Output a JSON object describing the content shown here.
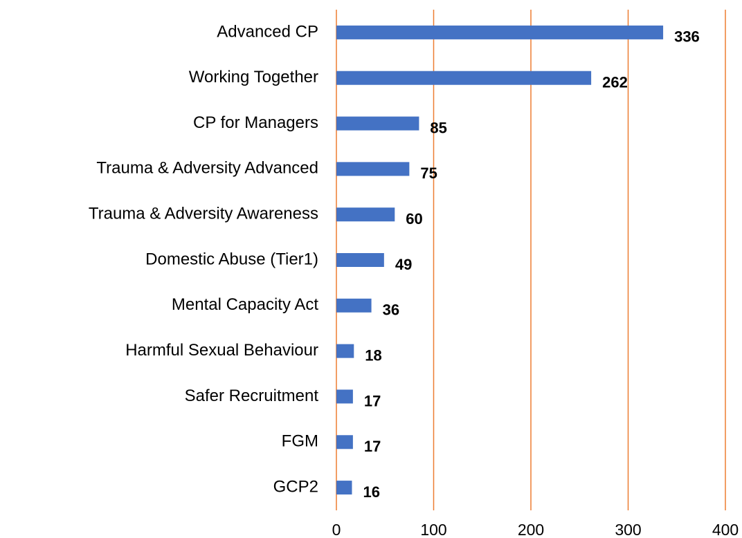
{
  "chart_data": {
    "type": "bar",
    "orientation": "horizontal",
    "categories": [
      "Advanced CP",
      "Working Together",
      "CP for Managers",
      "Trauma & Adversity Advanced",
      "Trauma & Adversity Awareness",
      "Domestic Abuse (Tier1)",
      "Mental Capacity Act",
      "Harmful Sexual Behaviour",
      "Safer Recruitment",
      "FGM",
      "GCP2"
    ],
    "values": [
      336,
      262,
      85,
      75,
      60,
      49,
      36,
      18,
      17,
      17,
      16
    ],
    "color": "#4472c4",
    "grid_color": "#ed7d31",
    "xlim": [
      0,
      400
    ],
    "xticks": [
      0,
      100,
      200,
      300,
      400
    ],
    "grid": true
  }
}
